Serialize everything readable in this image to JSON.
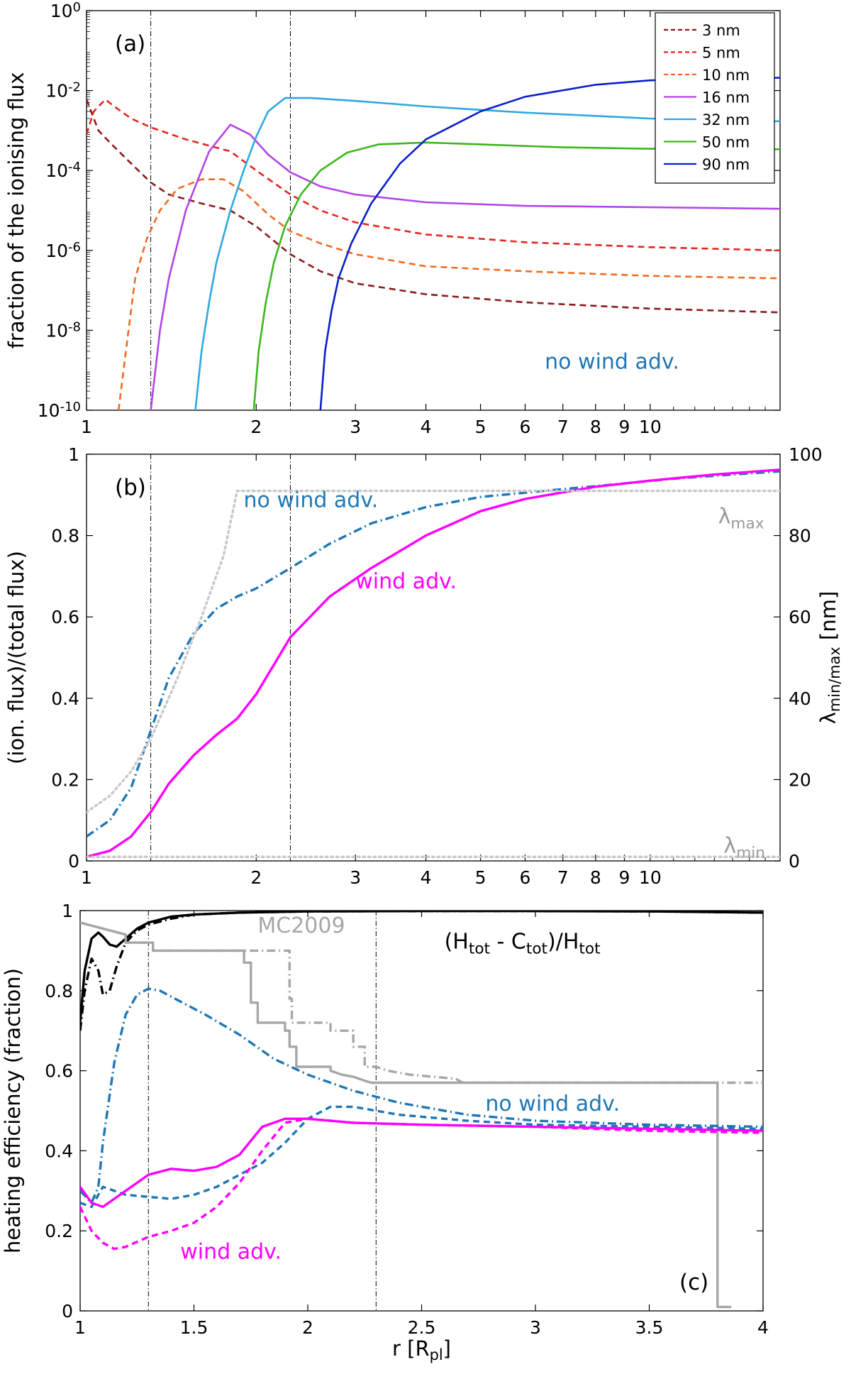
{
  "chart_data": [
    {
      "id": "a",
      "type": "line",
      "panel_label": "(a)",
      "ylabel": "fraction of the ionising flux",
      "xscale": "log",
      "yscale": "log",
      "xlim": [
        1,
        17
      ],
      "ylim": [
        1e-10,
        1
      ],
      "xticks": [
        1,
        2,
        3,
        4,
        5,
        6,
        7,
        8,
        9,
        10
      ],
      "xtick_labels": [
        "1",
        "2",
        "3",
        "4",
        "5",
        "6",
        "7",
        "8",
        "9",
        "10"
      ],
      "yticks": [
        {
          "value": 1e-10,
          "base": "10",
          "exp": "-10"
        },
        {
          "value": 1e-08,
          "base": "10",
          "exp": "-8"
        },
        {
          "value": 1e-06,
          "base": "10",
          "exp": "-6"
        },
        {
          "value": 0.0001,
          "base": "10",
          "exp": "-4"
        },
        {
          "value": 0.01,
          "base": "10",
          "exp": "-2"
        },
        {
          "value": 1,
          "base": "10",
          "exp": "0"
        }
      ],
      "vlines": [
        1.3,
        2.3
      ],
      "legend_position": "top-right",
      "annotations": [
        {
          "text": "no wind adv.",
          "x": 6.5,
          "y": 1.1e-09,
          "color": "#1f77b4"
        }
      ],
      "series": [
        {
          "name": "3 nm",
          "color": "#8b1a1a",
          "dash": "dash",
          "x": [
            1.0,
            1.05,
            1.1,
            1.2,
            1.3,
            1.4,
            1.6,
            1.8,
            2.0,
            2.3,
            2.6,
            3.0,
            4.0,
            6.0,
            10.0,
            17.0
          ],
          "y": [
            0.006,
            0.001,
            0.0005,
            0.00015,
            5e-05,
            2.5e-05,
            1.5e-05,
            1e-05,
            4e-06,
            8e-07,
            3e-07,
            1.5e-07,
            8e-08,
            5e-08,
            3.5e-08,
            2.8e-08
          ]
        },
        {
          "name": "5 nm",
          "color": "#e8231f",
          "dash": "dash",
          "x": [
            1.0,
            1.03,
            1.08,
            1.12,
            1.2,
            1.3,
            1.5,
            1.8,
            2.0,
            2.3,
            2.6,
            3.0,
            4.0,
            6.0,
            10.0,
            17.0
          ],
          "y": [
            0.0008,
            0.003,
            0.006,
            0.004,
            0.002,
            0.0012,
            0.0006,
            0.0003,
            0.0001,
            2.5e-05,
            1e-05,
            5e-06,
            2.5e-06,
            1.6e-06,
            1.2e-06,
            1e-06
          ]
        },
        {
          "name": "10 nm",
          "color": "#f36a21",
          "dash": "dash",
          "x": [
            1.14,
            1.18,
            1.22,
            1.28,
            1.35,
            1.45,
            1.6,
            1.75,
            1.9,
            2.1,
            2.3,
            2.6,
            3.0,
            4.0,
            6.0,
            10.0,
            17.0
          ],
          "y": [
            1e-10,
            5e-09,
            2e-07,
            2e-06,
            1e-05,
            3.5e-05,
            6e-05,
            6e-05,
            3e-05,
            8e-06,
            3e-06,
            1.5e-06,
            8e-07,
            4e-07,
            3e-07,
            2.3e-07,
            2e-07
          ]
        },
        {
          "name": "16 nm",
          "color": "#b245e8",
          "dash": "solid",
          "x": [
            1.3,
            1.35,
            1.4,
            1.5,
            1.65,
            1.8,
            1.95,
            2.1,
            2.3,
            2.6,
            3.0,
            4.0,
            6.0,
            10.0,
            17.0
          ],
          "y": [
            1e-10,
            1e-08,
            2e-07,
            1e-05,
            0.0003,
            0.0014,
            0.0008,
            0.00025,
            9e-05,
            4e-05,
            2.5e-05,
            1.6e-05,
            1.3e-05,
            1.2e-05,
            1.1e-05
          ]
        },
        {
          "name": "32 nm",
          "color": "#2ea8e0",
          "dash": "solid",
          "x": [
            1.56,
            1.6,
            1.65,
            1.7,
            1.8,
            1.9,
            2.0,
            2.1,
            2.25,
            2.5,
            3.0,
            4.0,
            6.0,
            10.0,
            17.0
          ],
          "y": [
            1e-10,
            3e-09,
            5e-08,
            5e-07,
            1e-05,
            0.0001,
            0.0007,
            0.003,
            0.0065,
            0.0065,
            0.0055,
            0.004,
            0.0028,
            0.002,
            0.0017
          ]
        },
        {
          "name": "50 nm",
          "color": "#3cb61c",
          "dash": "solid",
          "x": [
            1.98,
            2.02,
            2.08,
            2.15,
            2.25,
            2.4,
            2.6,
            2.9,
            3.3,
            4.0,
            5.0,
            7.0,
            10.0,
            17.0
          ],
          "y": [
            1e-10,
            3e-09,
            5e-08,
            5e-07,
            4e-06,
            2.5e-05,
            0.0001,
            0.00028,
            0.00045,
            0.0005,
            0.00045,
            0.00038,
            0.00035,
            0.00034
          ]
        },
        {
          "name": "90 nm",
          "color": "#0a1fc8",
          "dash": "solid",
          "x": [
            2.6,
            2.65,
            2.72,
            2.8,
            2.95,
            3.2,
            3.6,
            4.0,
            5.0,
            6.0,
            8.0,
            10.0,
            17.0
          ],
          "y": [
            1e-10,
            3e-09,
            3e-08,
            2e-07,
            1.5e-06,
            1.5e-05,
            0.00015,
            0.0006,
            0.003,
            0.007,
            0.014,
            0.018,
            0.021
          ]
        }
      ]
    },
    {
      "id": "b",
      "type": "line",
      "panel_label": "(b)",
      "ylabel": "(ion. flux)/(total flux)",
      "ylabel_right": {
        "base": "λ",
        "sub": "min/max",
        "rest": " [nm]"
      },
      "xscale": "log",
      "xlim": [
        1,
        17
      ],
      "ylim": [
        0,
        1
      ],
      "ylim_right": [
        0,
        100
      ],
      "xticks": [
        1,
        2,
        3,
        4,
        5,
        6,
        7,
        8,
        9,
        10
      ],
      "xtick_labels": [
        "1",
        "2",
        "3",
        "4",
        "5",
        "6",
        "7",
        "8",
        "9",
        "10"
      ],
      "yticks": [
        0,
        0.2,
        0.4,
        0.6,
        0.8,
        1
      ],
      "ytick_labels": [
        "0",
        "0.2",
        "0.4",
        "0.6",
        "0.8",
        "1"
      ],
      "yticks_right": [
        0,
        20,
        40,
        60,
        80,
        100
      ],
      "ytick_labels_right": [
        "0",
        "20",
        "40",
        "60",
        "80",
        "100"
      ],
      "vlines": [
        1.3,
        2.3
      ],
      "annotations": [
        {
          "text": "no wind adv.",
          "x": 1.9,
          "y": 0.87,
          "color": "#1f77b4"
        },
        {
          "text": "wind adv.",
          "x": 3.0,
          "y": 0.67,
          "color": "#ff00ff"
        },
        {
          "base": "λ",
          "sub": "max",
          "x": 13.2,
          "y": 0.83,
          "color": "#999999"
        },
        {
          "base": "λ",
          "sub": "min",
          "x": 13.5,
          "y": 0.02,
          "color": "#999999"
        }
      ],
      "series": [
        {
          "name": "no wind adv.",
          "color": "#1f77b4",
          "dash": "dashdot",
          "x": [
            1.0,
            1.1,
            1.2,
            1.3,
            1.4,
            1.55,
            1.7,
            1.85,
            2.0,
            2.3,
            2.7,
            3.2,
            4.0,
            5.0,
            6.5,
            8.5,
            11.0,
            14.0,
            17.0
          ],
          "y": [
            0.06,
            0.1,
            0.18,
            0.32,
            0.45,
            0.56,
            0.62,
            0.65,
            0.67,
            0.72,
            0.78,
            0.83,
            0.87,
            0.895,
            0.91,
            0.925,
            0.94,
            0.95,
            0.958
          ]
        },
        {
          "name": "wind adv.",
          "color": "#ff00ff",
          "dash": "solid",
          "x": [
            1.0,
            1.1,
            1.2,
            1.3,
            1.4,
            1.55,
            1.7,
            1.85,
            2.0,
            2.3,
            2.7,
            3.2,
            4.0,
            5.0,
            6.0,
            8.0,
            10.0,
            13.0,
            17.0
          ],
          "y": [
            0.01,
            0.025,
            0.06,
            0.12,
            0.19,
            0.26,
            0.31,
            0.35,
            0.41,
            0.55,
            0.65,
            0.72,
            0.8,
            0.86,
            0.89,
            0.92,
            0.935,
            0.95,
            0.962
          ]
        },
        {
          "name": "λmax",
          "axis": "right",
          "color": "#c8c8c8",
          "dash": "dot",
          "x": [
            1.0,
            1.1,
            1.2,
            1.3,
            1.45,
            1.6,
            1.75,
            1.85,
            17.0
          ],
          "y": [
            12,
            16,
            22,
            30,
            45,
            60,
            75,
            91,
            91
          ]
        },
        {
          "name": "λmin",
          "axis": "right",
          "color": "#c8c8c8",
          "dash": "dot",
          "x": [
            1.0,
            17.0
          ],
          "y": [
            1,
            1
          ]
        }
      ]
    },
    {
      "id": "c",
      "type": "line",
      "panel_label": "(c)",
      "ylabel": "heating efficiency (fraction)",
      "xlabel": {
        "base": "r [R",
        "sub": "pl",
        "rest": "]"
      },
      "xscale": "linear",
      "xlim": [
        1,
        4
      ],
      "ylim": [
        0,
        1
      ],
      "xticks": [
        1,
        1.5,
        2,
        2.5,
        3,
        3.5,
        4
      ],
      "xtick_labels": [
        "1",
        "1.5",
        "2",
        "2.5",
        "3",
        "3.5",
        "4"
      ],
      "yticks": [
        0,
        0.2,
        0.4,
        0.6,
        0.8,
        1
      ],
      "ytick_labels": [
        "0",
        "0.2",
        "0.4",
        "0.6",
        "0.8",
        "1"
      ],
      "vlines": [
        1.3,
        2.3
      ],
      "annotations": [
        {
          "text": "MC2009",
          "x": 1.78,
          "y": 0.945,
          "color": "#a6a6a6"
        },
        {
          "text": "no wind adv.",
          "x": 2.78,
          "y": 0.5,
          "color": "#1f77b4"
        },
        {
          "text": "wind adv.",
          "x": 1.44,
          "y": 0.13,
          "color": "#ff00ff"
        }
      ],
      "formula": {
        "open": "(H",
        "sub1": "tot",
        "mid": " - C",
        "sub2": "tot",
        "close": ")/H",
        "sub3": "tot",
        "x": 2.6,
        "y": 0.905
      },
      "series": [
        {
          "name": "black solid",
          "color": "#000000",
          "dash": "solid",
          "x": [
            1.0,
            1.02,
            1.05,
            1.08,
            1.1,
            1.13,
            1.16,
            1.2,
            1.25,
            1.3,
            1.4,
            1.5,
            1.7,
            2.0,
            2.5,
            3.0,
            3.5,
            4.0
          ],
          "y": [
            0.72,
            0.85,
            0.93,
            0.945,
            0.935,
            0.915,
            0.91,
            0.93,
            0.955,
            0.97,
            0.985,
            0.99,
            0.995,
            0.998,
            0.999,
            0.999,
            0.998,
            0.995
          ]
        },
        {
          "name": "black dashdot",
          "color": "#000000",
          "dash": "dashdot",
          "x": [
            1.0,
            1.02,
            1.05,
            1.08,
            1.1,
            1.13,
            1.16,
            1.2,
            1.25,
            1.3,
            1.4,
            1.5,
            1.7,
            2.0,
            2.5,
            3.0,
            3.5,
            4.0
          ],
          "y": [
            0.7,
            0.8,
            0.88,
            0.85,
            0.79,
            0.8,
            0.86,
            0.92,
            0.95,
            0.965,
            0.98,
            0.99,
            0.995,
            0.998,
            0.999,
            0.999,
            0.998,
            0.995
          ]
        },
        {
          "name": "MC2009 solid",
          "color": "#a6a6a6",
          "dash": "solid",
          "step": true,
          "x": [
            1.0,
            1.2,
            1.2,
            1.32,
            1.32,
            1.72,
            1.72,
            1.75,
            1.75,
            1.78,
            1.78,
            1.9,
            1.9,
            1.92,
            1.92,
            1.95,
            1.95,
            2.1,
            2.1,
            2.15,
            2.2,
            2.25,
            2.28,
            3.8,
            3.8,
            3.86
          ],
          "y": [
            0.97,
            0.94,
            0.92,
            0.92,
            0.9,
            0.9,
            0.87,
            0.87,
            0.77,
            0.77,
            0.72,
            0.72,
            0.7,
            0.7,
            0.66,
            0.66,
            0.61,
            0.61,
            0.6,
            0.59,
            0.585,
            0.575,
            0.57,
            0.57,
            0.01,
            0.01
          ]
        },
        {
          "name": "MC2009 dashdot",
          "color": "#a6a6a6",
          "dash": "dashdot",
          "step": true,
          "x": [
            1.0,
            1.2,
            1.2,
            1.32,
            1.32,
            1.92,
            1.92,
            1.93,
            1.93,
            2.1,
            2.1,
            2.2,
            2.2,
            2.25,
            2.25,
            2.3,
            2.35,
            2.45,
            2.55,
            2.65,
            2.68,
            4.0
          ],
          "y": [
            0.97,
            0.94,
            0.92,
            0.92,
            0.9,
            0.9,
            0.78,
            0.78,
            0.72,
            0.72,
            0.7,
            0.7,
            0.66,
            0.66,
            0.61,
            0.61,
            0.6,
            0.59,
            0.585,
            0.58,
            0.57,
            0.57
          ]
        },
        {
          "name": "no wind adv. dashdot",
          "color": "#1f77b4",
          "dash": "dashdot",
          "x": [
            1.0,
            1.05,
            1.08,
            1.1,
            1.15,
            1.2,
            1.25,
            1.3,
            1.35,
            1.45,
            1.55,
            1.7,
            1.85,
            2.0,
            2.2,
            2.4,
            2.7,
            3.0,
            3.5,
            4.0
          ],
          "y": [
            0.3,
            0.27,
            0.31,
            0.42,
            0.62,
            0.74,
            0.79,
            0.805,
            0.8,
            0.77,
            0.74,
            0.69,
            0.63,
            0.59,
            0.55,
            0.52,
            0.49,
            0.475,
            0.465,
            0.46
          ]
        },
        {
          "name": "no wind adv. dashed",
          "color": "#1f77b4",
          "dash": "dash",
          "x": [
            1.0,
            1.05,
            1.1,
            1.2,
            1.3,
            1.4,
            1.5,
            1.6,
            1.7,
            1.8,
            1.9,
            2.0,
            2.1,
            2.2,
            2.4,
            2.7,
            3.0,
            3.5,
            4.0
          ],
          "y": [
            0.27,
            0.26,
            0.31,
            0.29,
            0.285,
            0.28,
            0.29,
            0.31,
            0.34,
            0.37,
            0.42,
            0.48,
            0.51,
            0.51,
            0.49,
            0.475,
            0.465,
            0.46,
            0.455
          ]
        },
        {
          "name": "wind adv. solid",
          "color": "#ff00ff",
          "dash": "solid",
          "x": [
            1.0,
            1.05,
            1.1,
            1.15,
            1.2,
            1.25,
            1.3,
            1.4,
            1.5,
            1.6,
            1.7,
            1.8,
            1.9,
            2.0,
            2.2,
            2.5,
            3.0,
            3.5,
            4.0
          ],
          "y": [
            0.31,
            0.27,
            0.26,
            0.28,
            0.3,
            0.32,
            0.34,
            0.355,
            0.35,
            0.36,
            0.39,
            0.46,
            0.48,
            0.48,
            0.47,
            0.465,
            0.46,
            0.455,
            0.45
          ]
        },
        {
          "name": "wind adv. dashed",
          "color": "#ff00ff",
          "dash": "dash",
          "x": [
            1.0,
            1.05,
            1.1,
            1.15,
            1.2,
            1.3,
            1.4,
            1.5,
            1.6,
            1.7,
            1.8,
            1.9,
            2.0,
            2.2,
            2.5,
            3.0,
            3.5,
            4.0
          ],
          "y": [
            0.26,
            0.2,
            0.17,
            0.155,
            0.16,
            0.185,
            0.2,
            0.22,
            0.26,
            0.32,
            0.4,
            0.47,
            0.48,
            0.47,
            0.465,
            0.46,
            0.45,
            0.445
          ]
        }
      ]
    }
  ]
}
